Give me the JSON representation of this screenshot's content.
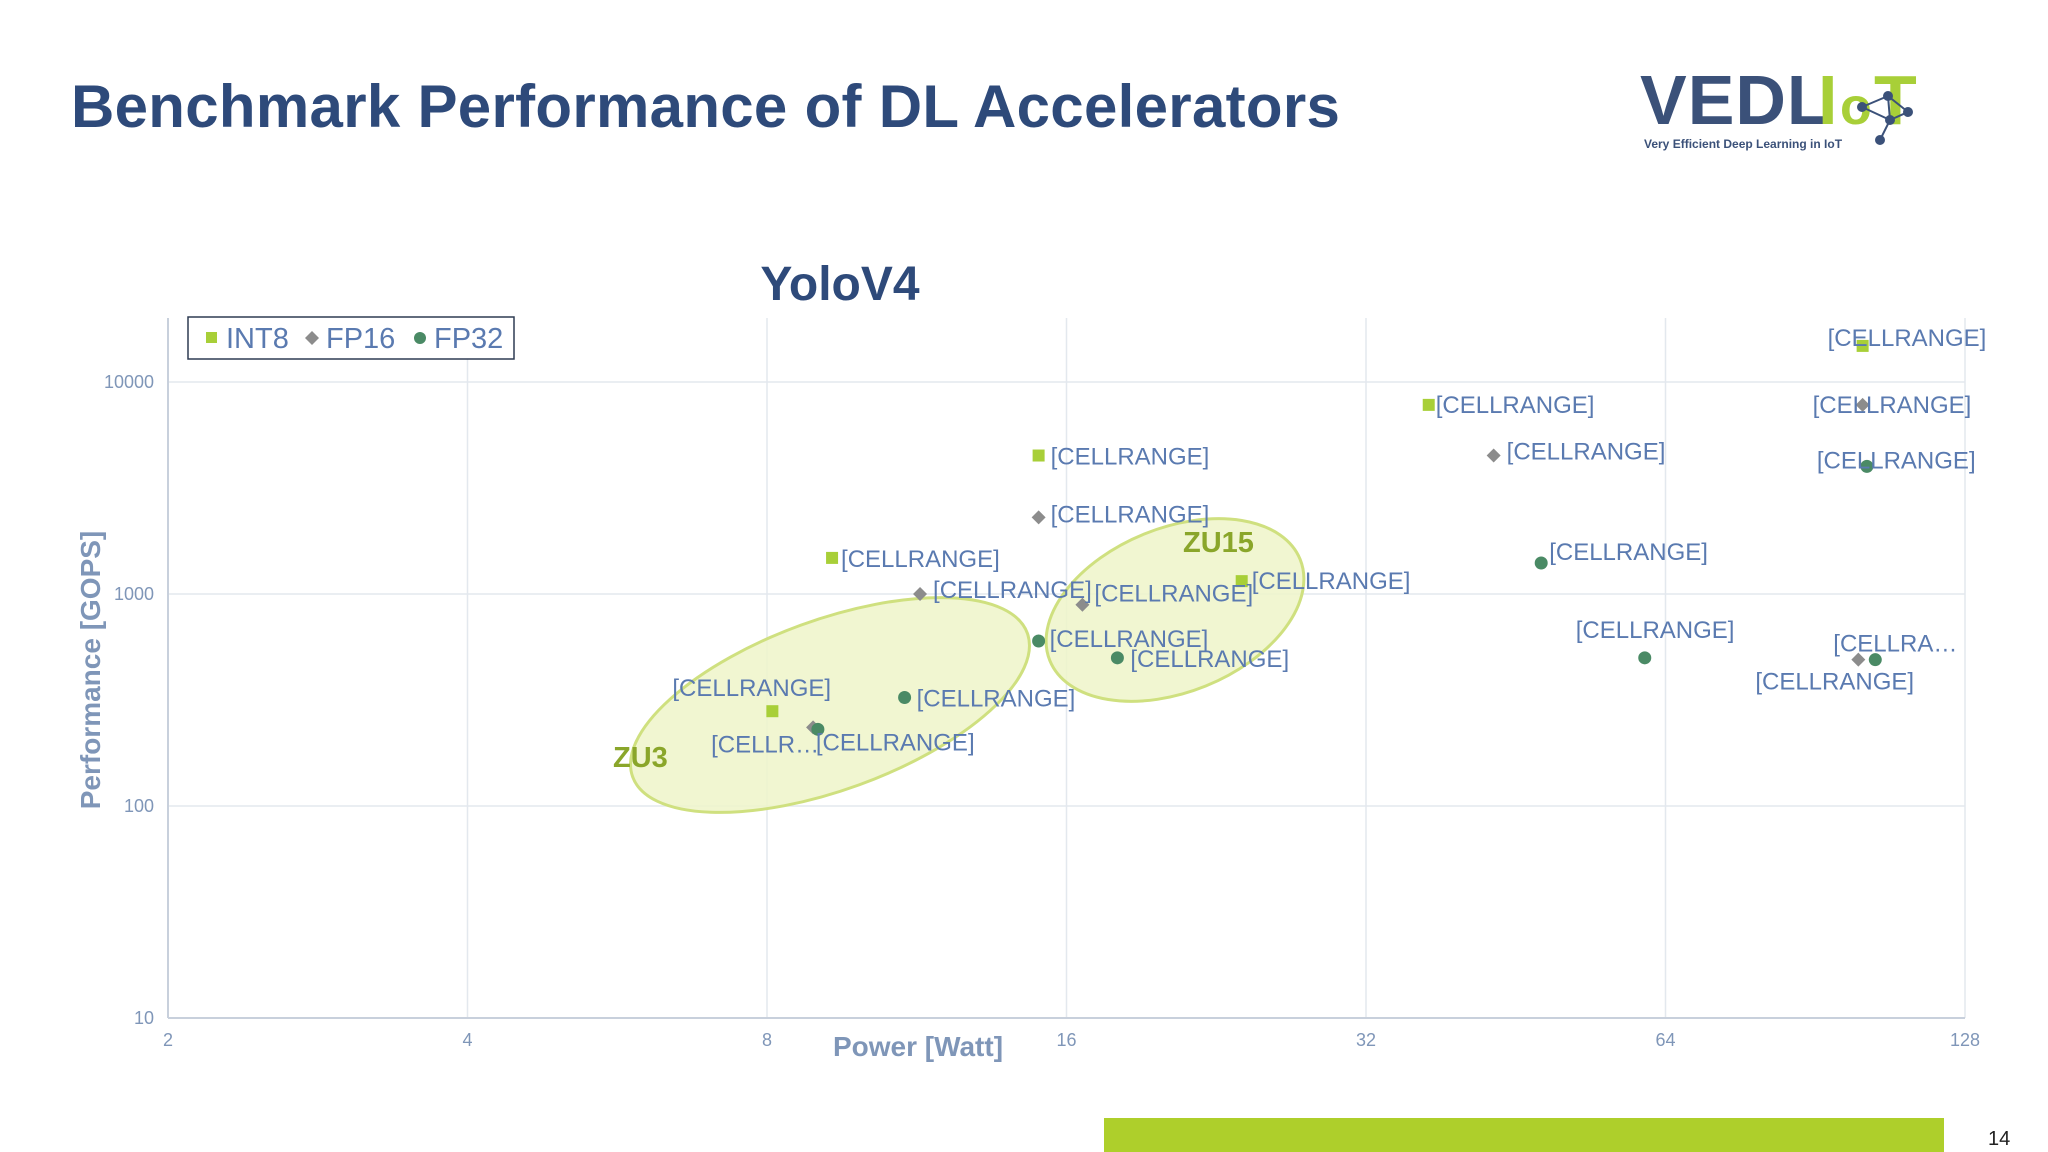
{
  "slide": {
    "title": "Benchmark Performance of DL Accelerators",
    "page_number": "14",
    "accent_color": "#aecf2b",
    "title_color": "#2e4a7a"
  },
  "logo": {
    "wordmark": "VEDLIoT",
    "tagline": "Very Efficient Deep Learning in IoT"
  },
  "chart_data": {
    "type": "scatter",
    "title": "YoloV4",
    "xlabel": "Power [Watt]",
    "ylabel": "Performance [GOPS]",
    "x_scale": "log2",
    "y_scale": "log10",
    "xlim": [
      2,
      128
    ],
    "ylim": [
      10,
      20000
    ],
    "x_ticks": [
      "2",
      "4",
      "8",
      "16",
      "32",
      "64",
      "128"
    ],
    "y_ticks": [
      "10",
      "100",
      "1000",
      "10000"
    ],
    "grid": true,
    "legend_position": "top-left",
    "legend": [
      "INT8",
      "FP16",
      "FP32"
    ],
    "series": [
      {
        "name": "INT8",
        "color": "#a8cf38",
        "marker": "square",
        "points": [
          {
            "x": 8.1,
            "y": 280,
            "label": "[CELLRANGE]"
          },
          {
            "x": 9.3,
            "y": 1480,
            "label": "[CELLRANGE]"
          },
          {
            "x": 15.0,
            "y": 4500,
            "label": "[CELLRANGE]"
          },
          {
            "x": 24.0,
            "y": 1150,
            "label": "[CELLRANGE]"
          },
          {
            "x": 37.0,
            "y": 7800,
            "label": "[CELLRANGE]"
          },
          {
            "x": 101.0,
            "y": 14800,
            "label": "[CELLRANGE]"
          }
        ]
      },
      {
        "name": "FP16",
        "color": "#8c8c8c",
        "marker": "diamond",
        "points": [
          {
            "x": 8.9,
            "y": 235,
            "label": "[CELLR…"
          },
          {
            "x": 11.4,
            "y": 1000,
            "label": "[CELLRANGE]"
          },
          {
            "x": 15.0,
            "y": 2300,
            "label": "[CELLRANGE]"
          },
          {
            "x": 16.6,
            "y": 890,
            "label": "[CELLRANGE]"
          },
          {
            "x": 43.0,
            "y": 4500,
            "label": "[CELLRANGE]"
          },
          {
            "x": 101.0,
            "y": 7800,
            "label": "[CELLRANGE]"
          },
          {
            "x": 100.0,
            "y": 490,
            "label": "[CELLRANGE]"
          }
        ]
      },
      {
        "name": "FP32",
        "color": "#4a8a65",
        "marker": "circle",
        "points": [
          {
            "x": 9.0,
            "y": 230,
            "label": "[CELLRANGE]"
          },
          {
            "x": 11.0,
            "y": 325,
            "label": "[CELLRANGE]"
          },
          {
            "x": 15.0,
            "y": 600,
            "label": "[CELLRANGE]"
          },
          {
            "x": 18.0,
            "y": 500,
            "label": "[CELLRANGE]"
          },
          {
            "x": 48.0,
            "y": 1400,
            "label": "[CELLRANGE]"
          },
          {
            "x": 61.0,
            "y": 500,
            "label": "[CELLRANGE]"
          },
          {
            "x": 102.0,
            "y": 4000,
            "label": "[CELLRANGE]"
          },
          {
            "x": 104.0,
            "y": 490,
            "label": "[CELLRA…"
          }
        ]
      }
    ],
    "groups": [
      {
        "name": "ZU3",
        "color": "#a8cf38"
      },
      {
        "name": "ZU15",
        "color": "#a8cf38"
      }
    ]
  }
}
